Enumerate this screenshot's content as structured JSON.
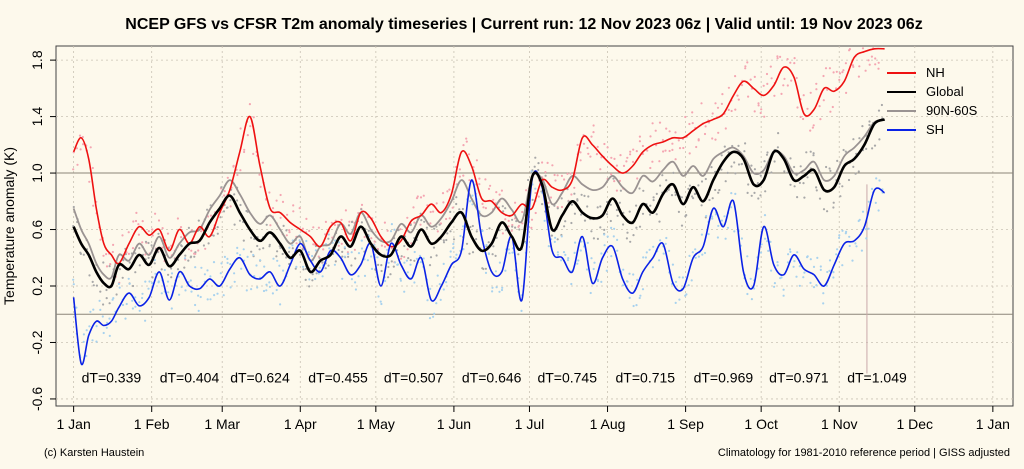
{
  "chart_data": {
    "type": "line",
    "title": "NCEP GFS vs CFSR T2m anomaly timeseries | Current run: 12 Nov 2023 06z | Valid until: 19 Nov 2023 06z",
    "ylabel": "Temperature anomaly (K)",
    "xlabel": "",
    "ylim": [
      -0.65,
      1.9
    ],
    "xlim_days": [
      -7,
      373
    ],
    "y_ticks": [
      -0.6,
      -0.2,
      0.2,
      0.6,
      1.0,
      1.4,
      1.8
    ],
    "y_tick_labels": [
      "-0.6",
      "-0.2",
      "0.2",
      "0.6",
      "1.0",
      "1.4",
      "1.8"
    ],
    "x_tick_days": [
      0,
      31,
      59,
      90,
      120,
      151,
      181,
      212,
      243,
      273,
      304,
      334,
      365
    ],
    "x_tick_labels": [
      "1 Jan",
      "1 Feb",
      "1 Mar",
      "1 Apr",
      "1 May",
      "1 Jun",
      "1 Jul",
      "1 Aug",
      "1 Sep",
      "1 Oct",
      "1 Nov",
      "1 Dec",
      "1 Jan"
    ],
    "hlines": [
      0,
      1.0
    ],
    "grid": true,
    "legend_position": "top-right",
    "current_run_day": 315,
    "series": [
      {
        "name": "NH",
        "color": "#ee1111",
        "dot_color": "#f4a6b2",
        "x": [
          0,
          3,
          6,
          9,
          12,
          15,
          18,
          22,
          26,
          30,
          34,
          38,
          42,
          46,
          50,
          54,
          58,
          62,
          66,
          70,
          74,
          78,
          82,
          86,
          90,
          94,
          98,
          102,
          106,
          110,
          114,
          118,
          122,
          126,
          130,
          134,
          138,
          142,
          146,
          150,
          154,
          158,
          162,
          166,
          170,
          174,
          178,
          182,
          186,
          190,
          194,
          198,
          202,
          206,
          210,
          214,
          218,
          222,
          226,
          230,
          234,
          238,
          242,
          246,
          250,
          254,
          258,
          262,
          266,
          270,
          274,
          278,
          282,
          286,
          290,
          294,
          298,
          302,
          306,
          310,
          314,
          318,
          322
        ],
        "y": [
          1.15,
          1.25,
          1.1,
          0.75,
          0.5,
          0.42,
          0.36,
          0.5,
          0.62,
          0.56,
          0.6,
          0.45,
          0.6,
          0.5,
          0.62,
          0.55,
          0.72,
          0.88,
          1.15,
          1.4,
          1.05,
          0.75,
          0.72,
          0.65,
          0.6,
          0.55,
          0.48,
          0.62,
          0.65,
          0.52,
          0.72,
          0.68,
          0.55,
          0.48,
          0.52,
          0.66,
          0.7,
          0.78,
          0.72,
          0.85,
          1.15,
          1.05,
          0.82,
          0.8,
          0.72,
          0.7,
          0.78,
          0.75,
          0.95,
          0.9,
          0.88,
          0.95,
          1.25,
          1.2,
          1.12,
          1.05,
          1.0,
          1.05,
          1.15,
          1.2,
          1.22,
          1.25,
          1.25,
          1.3,
          1.35,
          1.38,
          1.42,
          1.55,
          1.65,
          1.6,
          1.55,
          1.62,
          1.75,
          1.68,
          1.42,
          1.45,
          1.6,
          1.58,
          1.65,
          1.82,
          1.86,
          1.88,
          1.88
        ]
      },
      {
        "name": "Global",
        "color": "#000000",
        "dot_color": "#a8a8a8",
        "x": [
          0,
          3,
          6,
          9,
          12,
          15,
          18,
          22,
          26,
          30,
          34,
          38,
          42,
          46,
          50,
          54,
          58,
          62,
          66,
          70,
          74,
          78,
          82,
          86,
          90,
          94,
          98,
          102,
          106,
          110,
          114,
          118,
          122,
          126,
          130,
          134,
          138,
          142,
          146,
          150,
          154,
          158,
          162,
          166,
          170,
          174,
          178,
          182,
          186,
          190,
          194,
          198,
          202,
          206,
          210,
          214,
          218,
          222,
          226,
          230,
          234,
          238,
          242,
          246,
          250,
          254,
          258,
          262,
          266,
          270,
          274,
          278,
          282,
          286,
          290,
          294,
          298,
          302,
          306,
          310,
          314,
          318,
          322
        ],
        "y": [
          0.62,
          0.5,
          0.42,
          0.3,
          0.22,
          0.2,
          0.35,
          0.32,
          0.42,
          0.35,
          0.47,
          0.34,
          0.42,
          0.5,
          0.52,
          0.65,
          0.75,
          0.84,
          0.72,
          0.6,
          0.52,
          0.58,
          0.5,
          0.4,
          0.45,
          0.3,
          0.38,
          0.42,
          0.55,
          0.48,
          0.62,
          0.5,
          0.42,
          0.42,
          0.55,
          0.48,
          0.6,
          0.5,
          0.55,
          0.65,
          0.72,
          0.55,
          0.45,
          0.5,
          0.65,
          0.55,
          0.48,
          0.97,
          0.92,
          0.6,
          0.7,
          0.8,
          0.72,
          0.68,
          0.7,
          0.82,
          0.7,
          0.65,
          0.78,
          0.72,
          0.85,
          0.92,
          0.78,
          0.9,
          0.8,
          0.95,
          1.08,
          1.15,
          1.1,
          0.92,
          0.95,
          1.15,
          1.1,
          0.95,
          0.98,
          1.02,
          0.88,
          0.9,
          1.05,
          1.1,
          1.2,
          1.35,
          1.38
        ]
      },
      {
        "name": "90N-60S",
        "color": "#9a9392",
        "dot_color": null,
        "x": [
          0,
          3,
          6,
          9,
          12,
          15,
          18,
          22,
          26,
          30,
          34,
          38,
          42,
          46,
          50,
          54,
          58,
          62,
          66,
          70,
          74,
          78,
          82,
          86,
          90,
          94,
          98,
          102,
          106,
          110,
          114,
          118,
          122,
          126,
          130,
          134,
          138,
          142,
          146,
          150,
          154,
          158,
          162,
          166,
          170,
          174,
          178,
          182,
          186,
          190,
          194,
          198,
          202,
          206,
          210,
          214,
          218,
          222,
          226,
          230,
          234,
          238,
          242,
          246,
          250,
          254,
          258,
          262,
          266,
          270,
          274,
          278,
          282,
          286,
          290,
          294,
          298,
          302,
          306,
          310,
          314,
          318,
          322
        ],
        "y": [
          0.75,
          0.6,
          0.5,
          0.36,
          0.28,
          0.26,
          0.42,
          0.38,
          0.5,
          0.42,
          0.55,
          0.4,
          0.5,
          0.58,
          0.6,
          0.74,
          0.84,
          0.95,
          0.85,
          0.72,
          0.64,
          0.7,
          0.6,
          0.5,
          0.55,
          0.38,
          0.48,
          0.5,
          0.64,
          0.57,
          0.72,
          0.6,
          0.52,
          0.52,
          0.64,
          0.58,
          0.7,
          0.62,
          0.68,
          0.8,
          0.95,
          0.82,
          0.7,
          0.72,
          0.82,
          0.74,
          0.66,
          0.97,
          0.96,
          0.78,
          0.86,
          0.98,
          0.92,
          0.88,
          0.9,
          0.98,
          0.9,
          0.86,
          0.98,
          0.94,
          1.02,
          1.08,
          0.98,
          1.05,
          0.98,
          1.1,
          1.15,
          1.18,
          1.12,
          1.0,
          1.02,
          1.15,
          1.12,
          1.0,
          1.02,
          1.08,
          0.95,
          0.98,
          1.12,
          1.18,
          1.26,
          1.36,
          1.38
        ]
      },
      {
        "name": "SH",
        "color": "#0a22e6",
        "dot_color": "#a8d2ee",
        "x": [
          0,
          3,
          6,
          9,
          12,
          15,
          18,
          22,
          26,
          30,
          34,
          38,
          42,
          46,
          50,
          54,
          58,
          62,
          66,
          70,
          74,
          78,
          82,
          86,
          90,
          94,
          98,
          102,
          106,
          110,
          114,
          118,
          122,
          126,
          130,
          134,
          138,
          142,
          146,
          150,
          154,
          158,
          162,
          166,
          170,
          174,
          178,
          182,
          186,
          190,
          194,
          198,
          202,
          206,
          210,
          214,
          218,
          222,
          226,
          230,
          234,
          238,
          242,
          246,
          250,
          254,
          258,
          262,
          266,
          270,
          274,
          278,
          282,
          286,
          290,
          294,
          298,
          302,
          306,
          310,
          314,
          318,
          322
        ],
        "y": [
          0.12,
          -0.35,
          -0.15,
          -0.05,
          -0.08,
          -0.05,
          0.05,
          0.15,
          0.06,
          0.12,
          0.3,
          0.1,
          0.3,
          0.2,
          0.18,
          0.25,
          0.2,
          0.32,
          0.4,
          0.28,
          0.25,
          0.3,
          0.2,
          0.35,
          0.5,
          0.38,
          0.3,
          0.45,
          0.4,
          0.28,
          0.35,
          0.5,
          0.2,
          0.5,
          0.35,
          0.25,
          0.4,
          0.1,
          0.2,
          0.35,
          0.45,
          0.95,
          0.55,
          0.3,
          0.3,
          0.55,
          0.1,
          0.95,
          0.9,
          0.45,
          0.4,
          0.3,
          0.55,
          0.22,
          0.4,
          0.48,
          0.25,
          0.15,
          0.3,
          0.4,
          0.5,
          0.22,
          0.18,
          0.4,
          0.48,
          0.75,
          0.62,
          0.8,
          0.3,
          0.2,
          0.62,
          0.35,
          0.28,
          0.42,
          0.32,
          0.28,
          0.2,
          0.35,
          0.5,
          0.52,
          0.62,
          0.88,
          0.86
        ]
      }
    ],
    "dT_labels": [
      "dT=0.339",
      "dT=0.404",
      "dT=0.624",
      "dT=0.455",
      "dT=0.507",
      "dT=0.646",
      "dT=0.745",
      "dT=0.715",
      "dT=0.969",
      "dT=0.971",
      "dT=1.049"
    ]
  },
  "footer_left": "(c) Karsten Haustein",
  "footer_right": "Climatology for 1981-2010 reference period | GISS adjusted"
}
